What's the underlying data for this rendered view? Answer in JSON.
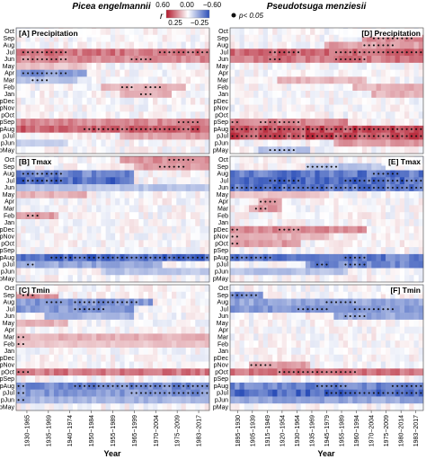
{
  "header": {
    "species_left": "Picea engelmannii",
    "species_right": "Pseudotsuga menziesii",
    "colorbar_label": "r",
    "cb_tick_top": [
      "0.60",
      "0.00",
      "−0.60"
    ],
    "cb_tick_bottom": [
      "0.25",
      "−0.25"
    ],
    "sig_label": "p< 0.05"
  },
  "colors": {
    "positive": "#b2182b",
    "neutral": "#ffffff",
    "negative": "#2c4fb8",
    "dot": "#111111"
  },
  "chart_data": [
    {
      "type": "heatmap",
      "panel": "[A] Precipitation",
      "species": "Picea engelmannii",
      "rows": [
        "Oct",
        "Sep",
        "Aug",
        "Jul",
        "Jun",
        "May",
        "Apr",
        "Mar",
        "Feb",
        "Jan",
        "pDec",
        "pNov",
        "pOct",
        "pSep",
        "pAug",
        "pJul",
        "pJun",
        "pMay"
      ],
      "value_range": [
        -0.6,
        0.6
      ],
      "windows": 41,
      "segments": [
        {
          "row": "Jul",
          "from": 0,
          "to": 40,
          "r": 0.35,
          "sig": [
            [
              1,
              10
            ],
            [
              30,
              40
            ]
          ]
        },
        {
          "row": "Jun",
          "from": 0,
          "to": 40,
          "r": 0.3,
          "sig": [
            [
              1,
              10
            ],
            [
              24,
              28
            ]
          ]
        },
        {
          "row": "May",
          "from": 0,
          "to": 14,
          "r": 0.15,
          "sig": []
        },
        {
          "row": "Apr",
          "from": 0,
          "to": 14,
          "r": -0.35,
          "sig": [
            [
              1,
              10
            ]
          ]
        },
        {
          "row": "Mar",
          "from": 0,
          "to": 12,
          "r": -0.2,
          "sig": [
            [
              3,
              6
            ]
          ]
        },
        {
          "row": "Feb",
          "from": 18,
          "to": 35,
          "r": 0.2,
          "sig": [
            [
              22,
              24
            ],
            [
              27,
              30
            ]
          ]
        },
        {
          "row": "Jan",
          "from": 22,
          "to": 32,
          "r": 0.2,
          "sig": [
            [
              26,
              28
            ]
          ]
        },
        {
          "row": "pSep",
          "from": 0,
          "to": 40,
          "r": 0.3,
          "sig": [
            [
              34,
              38
            ]
          ]
        },
        {
          "row": "pAug",
          "from": 0,
          "to": 40,
          "r": 0.4,
          "sig": [
            [
              14,
              38
            ]
          ]
        },
        {
          "row": "pJul",
          "from": 22,
          "to": 40,
          "r": 0.25,
          "sig": []
        },
        {
          "row": "pJun",
          "from": 0,
          "to": 10,
          "r": -0.15,
          "sig": []
        }
      ]
    },
    {
      "type": "heatmap",
      "panel": "[B] Tmax",
      "species": "Picea engelmannii",
      "rows": [
        "Oct",
        "Sep",
        "Aug",
        "Jul",
        "Jun",
        "May",
        "Apr",
        "Mar",
        "Feb",
        "Jan",
        "pDec",
        "pNov",
        "pOct",
        "pSep",
        "pAug",
        "pJul",
        "pJun",
        "pMay"
      ],
      "value_range": [
        -0.6,
        0.6
      ],
      "windows": 41,
      "segments": [
        {
          "row": "Oct",
          "from": 22,
          "to": 40,
          "r": 0.3,
          "sig": [
            [
              32,
              37
            ]
          ]
        },
        {
          "row": "Sep",
          "from": 25,
          "to": 40,
          "r": 0.25,
          "sig": [
            [
              30,
              35
            ]
          ]
        },
        {
          "row": "Aug",
          "from": 0,
          "to": 24,
          "r": -0.4,
          "sig": [
            [
              1,
              9
            ]
          ]
        },
        {
          "row": "Jul",
          "from": 0,
          "to": 24,
          "r": -0.5,
          "sig": [
            [
              1,
              9
            ]
          ]
        },
        {
          "row": "Jun",
          "from": 0,
          "to": 40,
          "r": -0.2,
          "sig": []
        },
        {
          "row": "May",
          "from": 0,
          "to": 14,
          "r": 0.2,
          "sig": []
        },
        {
          "row": "Feb",
          "from": 0,
          "to": 8,
          "r": 0.25,
          "sig": [
            [
              2,
              4
            ]
          ]
        },
        {
          "row": "pAug",
          "from": 0,
          "to": 40,
          "r": -0.5,
          "sig": [
            [
              7,
              40
            ]
          ]
        },
        {
          "row": "pJul",
          "from": 0,
          "to": 30,
          "r": -0.3,
          "sig": [
            [
              2,
              3
            ]
          ]
        },
        {
          "row": "pJun",
          "from": 18,
          "to": 40,
          "r": -0.2,
          "sig": []
        }
      ]
    },
    {
      "type": "heatmap",
      "panel": "[C] Tmin",
      "species": "Picea engelmannii",
      "rows": [
        "Oct",
        "Sep",
        "Aug",
        "Jul",
        "Jun",
        "May",
        "Apr",
        "Mar",
        "Feb",
        "Jan",
        "pDec",
        "pNov",
        "pOct",
        "pSep",
        "pAug",
        "pJul",
        "pJun",
        "pMay"
      ],
      "value_range": [
        -0.6,
        0.6
      ],
      "windows": 41,
      "segments": [
        {
          "row": "Sep",
          "from": 0,
          "to": 8,
          "r": 0.3,
          "sig": [
            [
              1,
              3
            ]
          ]
        },
        {
          "row": "Aug",
          "from": 0,
          "to": 28,
          "r": -0.35,
          "sig": [
            [
              6,
              9
            ],
            [
              12,
              25
            ]
          ]
        },
        {
          "row": "Jul",
          "from": 0,
          "to": 24,
          "r": -0.35,
          "sig": [
            [
              12,
              18
            ]
          ]
        },
        {
          "row": "Jun",
          "from": 6,
          "to": 24,
          "r": -0.25,
          "sig": []
        },
        {
          "row": "May",
          "from": 0,
          "to": 10,
          "r": 0.2,
          "sig": []
        },
        {
          "row": "Mar",
          "from": 0,
          "to": 40,
          "r": 0.2,
          "sig": [
            [
              0,
              1
            ]
          ]
        },
        {
          "row": "Feb",
          "from": 0,
          "to": 40,
          "r": 0.15,
          "sig": [
            [
              0,
              1
            ]
          ]
        },
        {
          "row": "pOct",
          "from": 0,
          "to": 40,
          "r": 0.35,
          "sig": [
            [
              0,
              2
            ]
          ]
        },
        {
          "row": "pAug",
          "from": 0,
          "to": 40,
          "r": -0.4,
          "sig": [
            [
              0,
              1
            ],
            [
              12,
              40
            ]
          ]
        },
        {
          "row": "pJul",
          "from": 0,
          "to": 40,
          "r": -0.35,
          "sig": [
            [
              0,
              1
            ],
            [
              24,
              40
            ]
          ]
        },
        {
          "row": "pJun",
          "from": 0,
          "to": 40,
          "r": -0.25,
          "sig": [
            [
              0,
              1
            ]
          ]
        }
      ]
    },
    {
      "type": "heatmap",
      "panel": "[D] Precipitation",
      "species": "Pseudotsuga menziesii",
      "rows": [
        "Oct",
        "Sep",
        "Aug",
        "Jul",
        "Jun",
        "May",
        "Apr",
        "Mar",
        "Feb",
        "Jan",
        "pDec",
        "pNov",
        "pOct",
        "pSep",
        "pAug",
        "pJul",
        "pJun",
        "pMay"
      ],
      "value_range": [
        -0.6,
        0.6
      ],
      "windows": 41,
      "segments": [
        {
          "row": "Sep",
          "from": 28,
          "to": 40,
          "r": 0.3,
          "sig": [
            [
              30,
              38
            ]
          ]
        },
        {
          "row": "Aug",
          "from": 20,
          "to": 40,
          "r": 0.25,
          "sig": [
            [
              28,
              34
            ]
          ]
        },
        {
          "row": "Jul",
          "from": 0,
          "to": 40,
          "r": 0.4,
          "sig": [
            [
              8,
              14
            ],
            [
              22,
              40
            ]
          ]
        },
        {
          "row": "Jun",
          "from": 0,
          "to": 40,
          "r": 0.35,
          "sig": [
            [
              8,
              10
            ],
            [
              22,
              28
            ]
          ]
        },
        {
          "row": "Mar",
          "from": 10,
          "to": 28,
          "r": 0.2,
          "sig": []
        },
        {
          "row": "Feb",
          "from": 26,
          "to": 40,
          "r": 0.2,
          "sig": []
        },
        {
          "row": "Jan",
          "from": 30,
          "to": 40,
          "r": 0.2,
          "sig": []
        },
        {
          "row": "pSep",
          "from": 0,
          "to": 24,
          "r": 0.3,
          "sig": [
            [
              0,
              1
            ],
            [
              6,
              14
            ]
          ]
        },
        {
          "row": "pAug",
          "from": 0,
          "to": 40,
          "r": 0.45,
          "sig": [
            [
              0,
              40
            ]
          ]
        },
        {
          "row": "pJul",
          "from": 0,
          "to": 40,
          "r": 0.45,
          "sig": [
            [
              0,
              40
            ]
          ]
        },
        {
          "row": "pJun",
          "from": 22,
          "to": 40,
          "r": 0.25,
          "sig": []
        },
        {
          "row": "pMay",
          "from": 6,
          "to": 16,
          "r": -0.2,
          "sig": [
            [
              8,
              13
            ]
          ]
        }
      ]
    },
    {
      "type": "heatmap",
      "panel": "[E] Tmax",
      "species": "Pseudotsuga menziesii",
      "rows": [
        "Oct",
        "Sep",
        "Aug",
        "Jul",
        "Jun",
        "May",
        "Apr",
        "Mar",
        "Feb",
        "Jan",
        "pDec",
        "pNov",
        "pOct",
        "pSep",
        "pAug",
        "pJul",
        "pJun",
        "pMay"
      ],
      "value_range": [
        -0.6,
        0.6
      ],
      "windows": 41,
      "segments": [
        {
          "row": "Sep",
          "from": 16,
          "to": 32,
          "r": -0.2,
          "sig": [
            [
              16,
              22
            ]
          ]
        },
        {
          "row": "Aug",
          "from": 0,
          "to": 40,
          "r": -0.45,
          "sig": [
            [
              30,
              35
            ]
          ]
        },
        {
          "row": "Jul",
          "from": 0,
          "to": 40,
          "r": -0.5,
          "sig": [
            [
              8,
              14
            ],
            [
              24,
              40
            ]
          ]
        },
        {
          "row": "Jun",
          "from": 0,
          "to": 40,
          "r": -0.45,
          "sig": [
            [
              0,
              40
            ]
          ]
        },
        {
          "row": "May",
          "from": 0,
          "to": 20,
          "r": 0.15,
          "sig": []
        },
        {
          "row": "Apr",
          "from": 6,
          "to": 10,
          "r": 0.25,
          "sig": [
            [
              6,
              9
            ]
          ]
        },
        {
          "row": "Mar",
          "from": 4,
          "to": 10,
          "r": 0.25,
          "sig": [
            [
              5,
              7
            ]
          ]
        },
        {
          "row": "pDec",
          "from": 0,
          "to": 28,
          "r": 0.3,
          "sig": [
            [
              0,
              1
            ],
            [
              10,
              14
            ]
          ]
        },
        {
          "row": "pNov",
          "from": 0,
          "to": 20,
          "r": 0.2,
          "sig": [
            [
              0,
              1
            ]
          ]
        },
        {
          "row": "pOct",
          "from": 0,
          "to": 14,
          "r": 0.25,
          "sig": [
            [
              0,
              1
            ]
          ]
        },
        {
          "row": "pAug",
          "from": 0,
          "to": 40,
          "r": -0.45,
          "sig": [
            [
              0,
              8
            ],
            [
              24,
              28
            ]
          ]
        },
        {
          "row": "pJul",
          "from": 16,
          "to": 40,
          "r": -0.4,
          "sig": [
            [
              18,
              20
            ],
            [
              24,
              28
            ]
          ]
        },
        {
          "row": "pJun",
          "from": 0,
          "to": 24,
          "r": -0.2,
          "sig": []
        }
      ]
    },
    {
      "type": "heatmap",
      "panel": "[F] Tmin",
      "species": "Pseudotsuga menziesii",
      "rows": [
        "Oct",
        "Sep",
        "Aug",
        "Jul",
        "Jun",
        "May",
        "Apr",
        "Mar",
        "Feb",
        "Jan",
        "pDec",
        "pNov",
        "pOct",
        "pSep",
        "pAug",
        "pJul",
        "pJun",
        "pMay"
      ],
      "value_range": [
        -0.6,
        0.6
      ],
      "windows": 41,
      "segments": [
        {
          "row": "Sep",
          "from": 0,
          "to": 6,
          "r": -0.4,
          "sig": [
            [
              0,
              5
            ]
          ]
        },
        {
          "row": "Aug",
          "from": 0,
          "to": 40,
          "r": -0.3,
          "sig": [
            [
              20,
              26
            ]
          ]
        },
        {
          "row": "Jul",
          "from": 0,
          "to": 40,
          "r": -0.35,
          "sig": [
            [
              14,
              20
            ],
            [
              26,
              34
            ]
          ]
        },
        {
          "row": "Jun",
          "from": 22,
          "to": 40,
          "r": -0.3,
          "sig": [
            [
              24,
              28
            ]
          ]
        },
        {
          "row": "pNov",
          "from": 4,
          "to": 16,
          "r": 0.25,
          "sig": [
            [
              4,
              8
            ]
          ]
        },
        {
          "row": "pOct",
          "from": 0,
          "to": 40,
          "r": 0.35,
          "sig": [
            [
              10,
              26
            ]
          ]
        },
        {
          "row": "pAug",
          "from": 0,
          "to": 40,
          "r": -0.4,
          "sig": [
            [
              18,
              24
            ],
            [
              34,
              40
            ]
          ]
        },
        {
          "row": "pJul",
          "from": 0,
          "to": 40,
          "r": -0.5,
          "sig": [
            [
              20,
              40
            ]
          ]
        },
        {
          "row": "pJun",
          "from": 0,
          "to": 40,
          "r": -0.3,
          "sig": []
        }
      ]
    }
  ],
  "axes": {
    "left": {
      "xlabel": "Year",
      "first_start": 1900,
      "ticks": [
        "1930−1965",
        "1935−1969",
        "1940−1974",
        "1950−1984",
        "1955−1989",
        "1965−1999",
        "1970−2004",
        "1975−2009",
        "1983−2017"
      ]
    },
    "right": {
      "xlabel": "Year",
      "first_start": 1895,
      "ticks": [
        "1895−1930",
        "1905−1939",
        "1915−1949",
        "1920−1954",
        "1930−1964",
        "1935−1969",
        "1945−1979",
        "1955−1989",
        "1960−1994",
        "1970−2004",
        "1975−2009",
        "1980−2014",
        "1983−2017"
      ]
    }
  }
}
